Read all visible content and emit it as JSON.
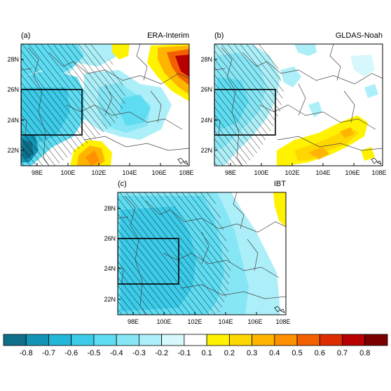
{
  "panels": [
    {
      "id": "a",
      "panel_label": "(a)",
      "dataset_label": "ERA-Interim",
      "lat_ticks": [
        "28N",
        "26N",
        "24N",
        "22N"
      ],
      "lon_ticks": [
        "98E",
        "100E",
        "102E",
        "104E",
        "106E",
        "108E"
      ]
    },
    {
      "id": "b",
      "panel_label": "(b)",
      "dataset_label": "GLDAS-Noah",
      "lat_ticks": [
        "28N",
        "26N",
        "24N",
        "22N"
      ],
      "lon_ticks": [
        "98E",
        "100E",
        "102E",
        "104E",
        "106E",
        "108E"
      ]
    },
    {
      "id": "c",
      "panel_label": "(c)",
      "dataset_label": "IBT",
      "lat_ticks": [
        "28N",
        "26N",
        "24N",
        "22N"
      ],
      "lon_ticks": [
        "98E",
        "100E",
        "102E",
        "104E",
        "106E",
        "108E"
      ]
    }
  ],
  "colorbar": {
    "labels": [
      "-0.8",
      "-0.7",
      "-0.6",
      "-0.5",
      "-0.4",
      "-0.3",
      "-0.2",
      "-0.1",
      "0.1",
      "0.2",
      "0.3",
      "0.4",
      "0.5",
      "0.6",
      "0.7",
      "0.8"
    ],
    "colors": [
      "#0f6e88",
      "#1494b4",
      "#22b6d8",
      "#3ccbe8",
      "#5edcf2",
      "#86e6f5",
      "#aceff8",
      "#d6f7fb",
      "#ffffff",
      "#fff200",
      "#ffd700",
      "#ffb400",
      "#ff9000",
      "#f26000",
      "#dd2c00",
      "#b80000",
      "#7a0000"
    ]
  }
}
